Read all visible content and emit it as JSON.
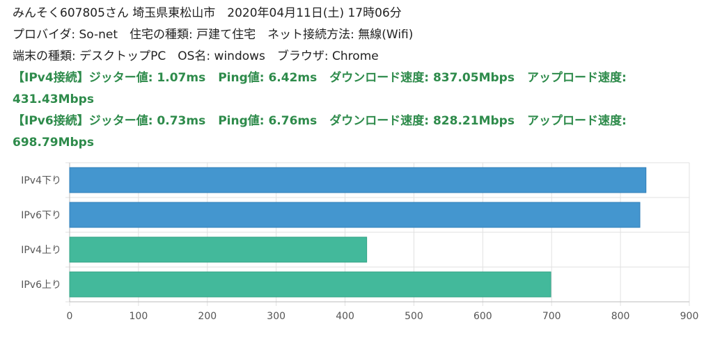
{
  "header": {
    "user_line": "みんそく607805さん 埼玉県東松山市　2020年04月11日(土) 17時06分",
    "provider_line": "プロバイダ: So-net　住宅の種類: 戸建て住宅　ネット接続方法: 無線(Wifi)",
    "device_line": "端末の種類: デスクトップPC　OS名: windows　ブラウザ: Chrome"
  },
  "results": {
    "ipv4": {
      "prefix": "【IPv4接続】",
      "jitter": "ジッター値: 1.07ms",
      "ping": "Ping値: 6.42ms",
      "download": "ダウンロード速度: 837.05Mbps",
      "upload": "アップロード速度: 431.43Mbps"
    },
    "ipv6": {
      "prefix": "【IPv6接続】",
      "jitter": "ジッター値: 0.73ms",
      "ping": "Ping値: 6.76ms",
      "download": "ダウンロード速度: 828.21Mbps",
      "upload": "アップロード速度: 698.79Mbps"
    }
  },
  "chart_data": {
    "type": "bar",
    "orientation": "horizontal",
    "categories": [
      "IPv4下り",
      "IPv6下り",
      "IPv4上り",
      "IPv6上り"
    ],
    "values": [
      837.05,
      828.21,
      431.43,
      698.79
    ],
    "colors": [
      "#4496cf",
      "#4496cf",
      "#43b99b",
      "#43b99b"
    ],
    "xlim": [
      0,
      900
    ],
    "xticks": [
      0,
      100,
      200,
      300,
      400,
      500,
      600,
      700,
      800,
      900
    ],
    "grid": true
  }
}
